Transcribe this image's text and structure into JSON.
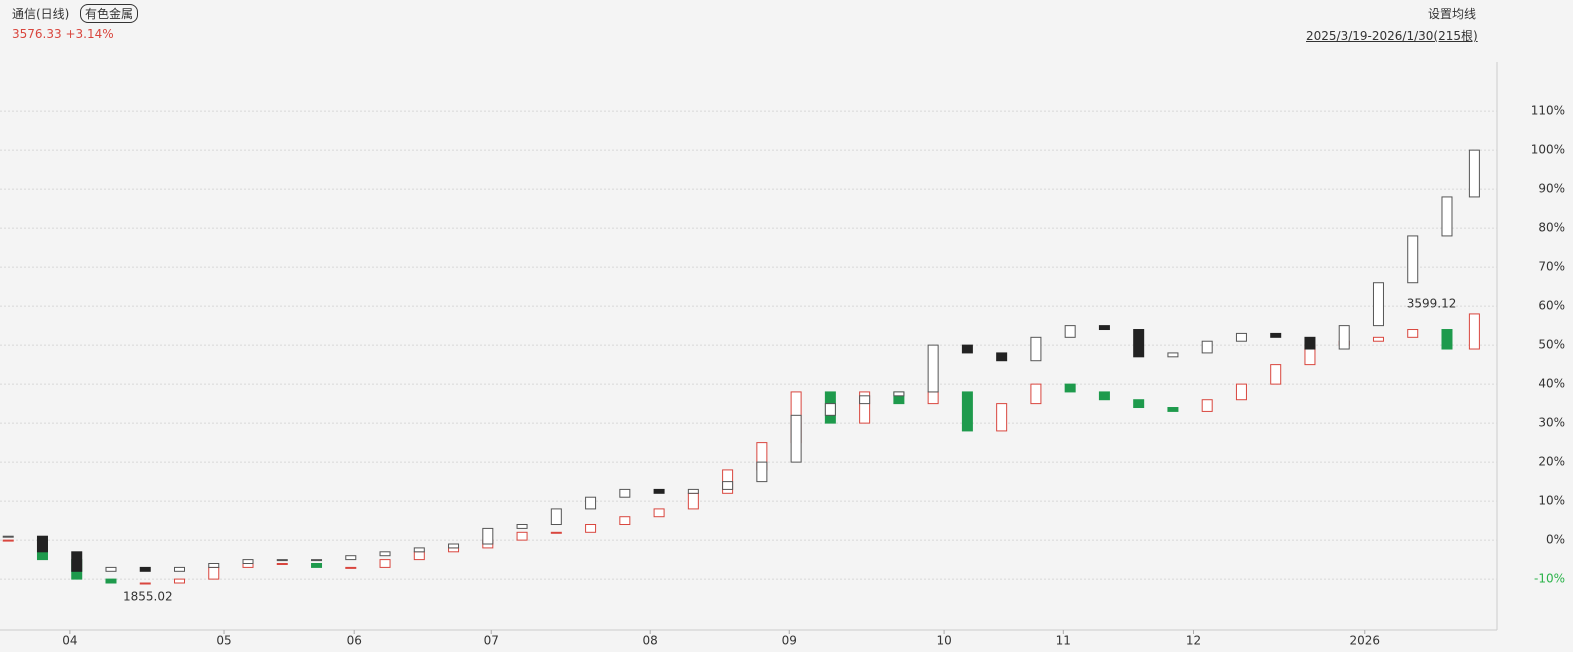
{
  "header": {
    "title": "通信(日线)",
    "tag": "有色金属",
    "quote": "3576.33  +3.14%",
    "setting": "设置均线",
    "range": "2025/3/19-2026/1/30(215根)"
  },
  "chart_data": {
    "type": "candlestick",
    "x": [
      0,
      5,
      10,
      15,
      20,
      25,
      30,
      35,
      40,
      45,
      50,
      55,
      60,
      65,
      70,
      75,
      80,
      85,
      90,
      95,
      100,
      105,
      110,
      115,
      120,
      125,
      130,
      135,
      140,
      145,
      150,
      155,
      160,
      165,
      170,
      175,
      180,
      185,
      190,
      195,
      200,
      205,
      210,
      214
    ],
    "series": [
      {
        "name": "通信",
        "up_color": "#d9463e",
        "down_color": "#1e9a4c",
        "values": [
          0,
          -5,
          -10,
          -11,
          -11,
          -10,
          -7,
          -6,
          -6,
          -7,
          -7,
          -5,
          -3,
          -2,
          0,
          2,
          2,
          4,
          6,
          8,
          12,
          18,
          25,
          38,
          30,
          38,
          35,
          38,
          28,
          35,
          40,
          38,
          36,
          34,
          33,
          36,
          40,
          45,
          50,
          51,
          52,
          54,
          49,
          58
        ]
      },
      {
        "name": "有色金属",
        "up_color": "#555555",
        "down_color": "#222222",
        "values": [
          1,
          -3,
          -8,
          -7,
          -8,
          -7,
          -6,
          -5,
          -5,
          -5,
          -4,
          -3,
          -2,
          -1,
          3,
          4,
          8,
          11,
          13,
          12,
          13,
          15,
          20,
          32,
          35,
          37,
          38,
          50,
          48,
          46,
          52,
          55,
          54,
          47,
          48,
          51,
          53,
          52,
          49,
          55,
          66,
          78,
          88,
          100
        ]
      }
    ],
    "annotations": [
      "3599.12",
      "1855.02"
    ],
    "xlim": [
      -1.2,
      217.3
    ],
    "xticks": [
      {
        "value": 9,
        "label": "04"
      },
      {
        "value": 31.5,
        "label": "05"
      },
      {
        "value": 50.5,
        "label": "06"
      },
      {
        "value": 70.5,
        "label": "07"
      },
      {
        "value": 93.7,
        "label": "08"
      },
      {
        "value": 114,
        "label": "09"
      },
      {
        "value": 136.6,
        "label": "10"
      },
      {
        "value": 154,
        "label": "11"
      },
      {
        "value": 173,
        "label": "12"
      },
      {
        "value": 198,
        "label": "2026"
      }
    ],
    "ylim": [
      -21,
      122.6
    ],
    "yticks": [
      {
        "value": -10,
        "label": "-10%"
      },
      {
        "value": 0,
        "label": "0%"
      },
      {
        "value": 10,
        "label": "10%"
      },
      {
        "value": 20,
        "label": "20%"
      },
      {
        "value": 30,
        "label": "30%"
      },
      {
        "value": 40,
        "label": "40%"
      },
      {
        "value": 50,
        "label": "50%"
      },
      {
        "value": 60,
        "label": "60%"
      },
      {
        "value": 70,
        "label": "70%"
      },
      {
        "value": 80,
        "label": "80%"
      },
      {
        "value": 90,
        "label": "90%"
      },
      {
        "value": 100,
        "label": "100%"
      },
      {
        "value": 110,
        "label": "110%"
      }
    ],
    "grid": true
  }
}
